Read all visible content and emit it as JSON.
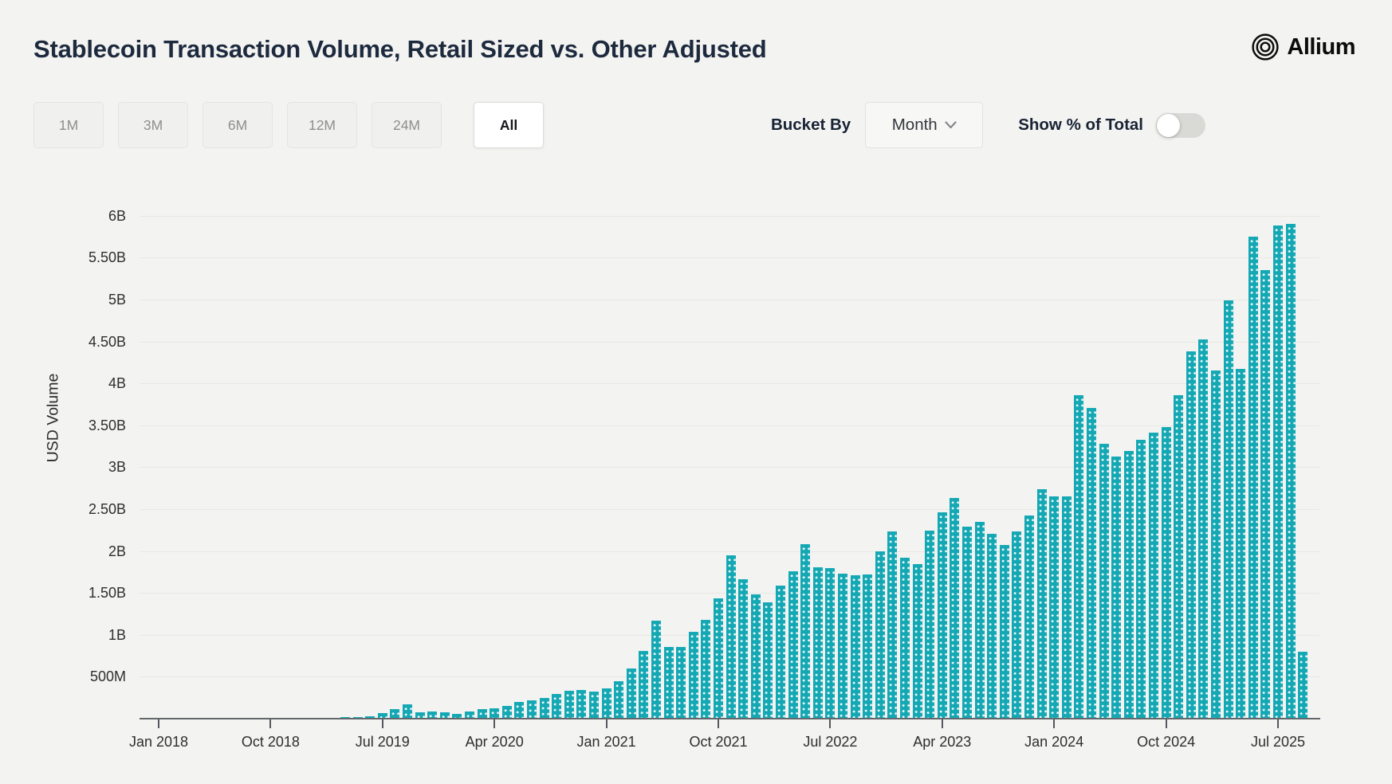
{
  "header": {
    "title": "Stablecoin Transaction Volume, Retail Sized vs. Other Adjusted",
    "brand": "Allium"
  },
  "toolbar": {
    "range_buttons": [
      {
        "label": "1M",
        "active": false
      },
      {
        "label": "3M",
        "active": false
      },
      {
        "label": "6M",
        "active": false
      },
      {
        "label": "12M",
        "active": false
      },
      {
        "label": "24M",
        "active": false
      },
      {
        "label": "All",
        "active": true
      }
    ],
    "bucket_by_label": "Bucket By",
    "bucket_by_value": "Month",
    "toggle_label": "Show % of Total",
    "toggle_on": false
  },
  "icons": {
    "chevron_down": "chevron-down-icon",
    "logo_rings": "allium-rings-icon"
  },
  "colors": {
    "bar": "#14a8b4",
    "page_bg": "#f3f3f1",
    "title_text": "#1d2a3e",
    "gridline": "#e7e7e4"
  },
  "chart_data": {
    "type": "bar",
    "title": "Stablecoin Transaction Volume, Retail Sized vs. Other Adjusted",
    "xlabel": "",
    "ylabel": "USD Volume",
    "unit": "USD (billions)",
    "bar_color": "#14a8b4",
    "grid": true,
    "legend": "none",
    "ylim_billions": [
      0,
      6.2
    ],
    "ytick_labels": [
      "500M",
      "1B",
      "1.50B",
      "2B",
      "2.50B",
      "3B",
      "3.50B",
      "4B",
      "4.50B",
      "5B",
      "5.50B",
      "6B"
    ],
    "ytick_values_billions": [
      0.5,
      1,
      1.5,
      2,
      2.5,
      3,
      3.5,
      4,
      4.5,
      5,
      5.5,
      6
    ],
    "xtick_labels": [
      "Jan 2018",
      "Oct 2018",
      "Jul 2019",
      "Apr 2020",
      "Jan 2021",
      "Oct 2021",
      "Jul 2022",
      "Apr 2023",
      "Jan 2024",
      "Oct 2024",
      "Jul 2025"
    ],
    "xtick_indices": [
      0,
      9,
      18,
      27,
      36,
      45,
      54,
      63,
      72,
      81,
      90
    ],
    "x": [
      "Jan 2018",
      "Feb 2018",
      "Mar 2018",
      "Apr 2018",
      "May 2018",
      "Jun 2018",
      "Jul 2018",
      "Aug 2018",
      "Sep 2018",
      "Oct 2018",
      "Nov 2018",
      "Dec 2018",
      "Jan 2019",
      "Feb 2019",
      "Mar 2019",
      "Apr 2019",
      "May 2019",
      "Jun 2019",
      "Jul 2019",
      "Aug 2019",
      "Sep 2019",
      "Oct 2019",
      "Nov 2019",
      "Dec 2019",
      "Jan 2020",
      "Feb 2020",
      "Mar 2020",
      "Apr 2020",
      "May 2020",
      "Jun 2020",
      "Jul 2020",
      "Aug 2020",
      "Sep 2020",
      "Oct 2020",
      "Nov 2020",
      "Dec 2020",
      "Jan 2021",
      "Feb 2021",
      "Mar 2021",
      "Apr 2021",
      "May 2021",
      "Jun 2021",
      "Jul 2021",
      "Aug 2021",
      "Sep 2021",
      "Oct 2021",
      "Nov 2021",
      "Dec 2021",
      "Jan 2022",
      "Feb 2022",
      "Mar 2022",
      "Apr 2022",
      "May 2022",
      "Jun 2022",
      "Jul 2022",
      "Aug 2022",
      "Sep 2022",
      "Oct 2022",
      "Nov 2022",
      "Dec 2022",
      "Jan 2023",
      "Feb 2023",
      "Mar 2023",
      "Apr 2023",
      "May 2023",
      "Jun 2023",
      "Jul 2023",
      "Aug 2023",
      "Sep 2023",
      "Oct 2023",
      "Nov 2023",
      "Dec 2023",
      "Jan 2024",
      "Feb 2024",
      "Mar 2024",
      "Apr 2024",
      "May 2024",
      "Jun 2024",
      "Jul 2024",
      "Aug 2024",
      "Sep 2024",
      "Oct 2024",
      "Nov 2024",
      "Dec 2024",
      "Jan 2025",
      "Feb 2025",
      "Mar 2025",
      "Apr 2025",
      "May 2025",
      "Jun 2025",
      "Jul 2025",
      "Aug 2025",
      "Sep 2025"
    ],
    "values_billions": [
      0.003,
      0.003,
      0.004,
      0.004,
      0.005,
      0.005,
      0.006,
      0.006,
      0.007,
      0.008,
      0.009,
      0.01,
      0.01,
      0.01,
      0.012,
      0.015,
      0.02,
      0.03,
      0.07,
      0.11,
      0.17,
      0.08,
      0.09,
      0.08,
      0.06,
      0.09,
      0.11,
      0.12,
      0.15,
      0.2,
      0.22,
      0.25,
      0.29,
      0.33,
      0.34,
      0.32,
      0.36,
      0.45,
      0.6,
      0.81,
      1.17,
      0.86,
      0.86,
      1.04,
      1.18,
      1.44,
      1.95,
      1.66,
      1.48,
      1.39,
      1.59,
      1.76,
      2.08,
      1.81,
      1.8,
      1.73,
      1.71,
      1.72,
      2.0,
      2.23,
      1.92,
      1.84,
      2.24,
      2.46,
      2.63,
      2.29,
      2.35,
      2.21,
      2.07,
      2.23,
      2.42,
      2.74,
      2.65,
      2.65,
      3.86,
      3.71,
      3.28,
      3.13,
      3.19,
      3.33,
      3.41,
      3.48,
      3.86,
      4.38,
      4.52,
      4.15,
      4.99,
      4.17,
      5.75,
      5.35,
      5.88,
      5.9,
      0.8
    ]
  }
}
